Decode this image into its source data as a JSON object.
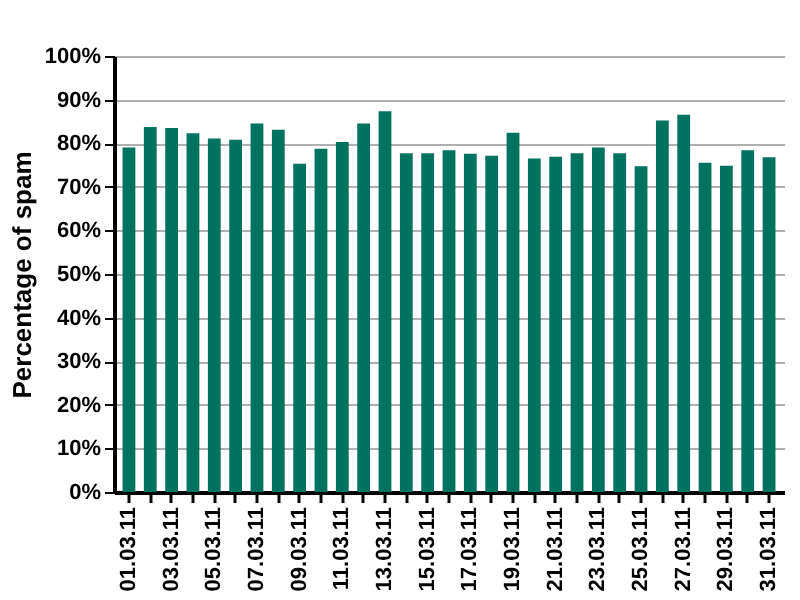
{
  "chart_data": {
    "type": "bar",
    "ylabel": "Percentage of spam",
    "categories": [
      "01.03.11",
      null,
      "03.03.11",
      null,
      "05.03.11",
      null,
      "07.03.11",
      null,
      "09.03.11",
      null,
      "11.03.11",
      null,
      "13.03.11",
      null,
      "15.03.11",
      null,
      "17.03.11",
      null,
      "19.03.11",
      null,
      "21.03.11",
      null,
      "23.03.11",
      null,
      "25.03.11",
      null,
      "27.03.11",
      null,
      "29.03.11",
      null,
      "31.03.11"
    ],
    "values": [
      79,
      83.7,
      83.5,
      82.3,
      81.1,
      80.8,
      84.5,
      83.1,
      75.3,
      78.7,
      80.3,
      84.5,
      87.3,
      77.7,
      77.7,
      78.4,
      77.6,
      77.1,
      82.4,
      76.5,
      76.9,
      77.7,
      79,
      77.7,
      74.7,
      85.2,
      86.5,
      75.5,
      74.8,
      78.4,
      76.8
    ],
    "color": "#007360",
    "ylim": [
      0,
      100
    ],
    "yticks": [
      {
        "value": 0,
        "label": "0%"
      },
      {
        "value": 10,
        "label": "10%"
      },
      {
        "value": 20,
        "label": "20%"
      },
      {
        "value": 30,
        "label": "30%"
      },
      {
        "value": 40,
        "label": "40%"
      },
      {
        "value": 50,
        "label": "50%"
      },
      {
        "value": 60,
        "label": "60%"
      },
      {
        "value": 70,
        "label": "70%"
      },
      {
        "value": 80,
        "label": "80%"
      },
      {
        "value": 90,
        "label": "90%"
      },
      {
        "value": 100,
        "label": "100%"
      }
    ],
    "grid": "y"
  }
}
